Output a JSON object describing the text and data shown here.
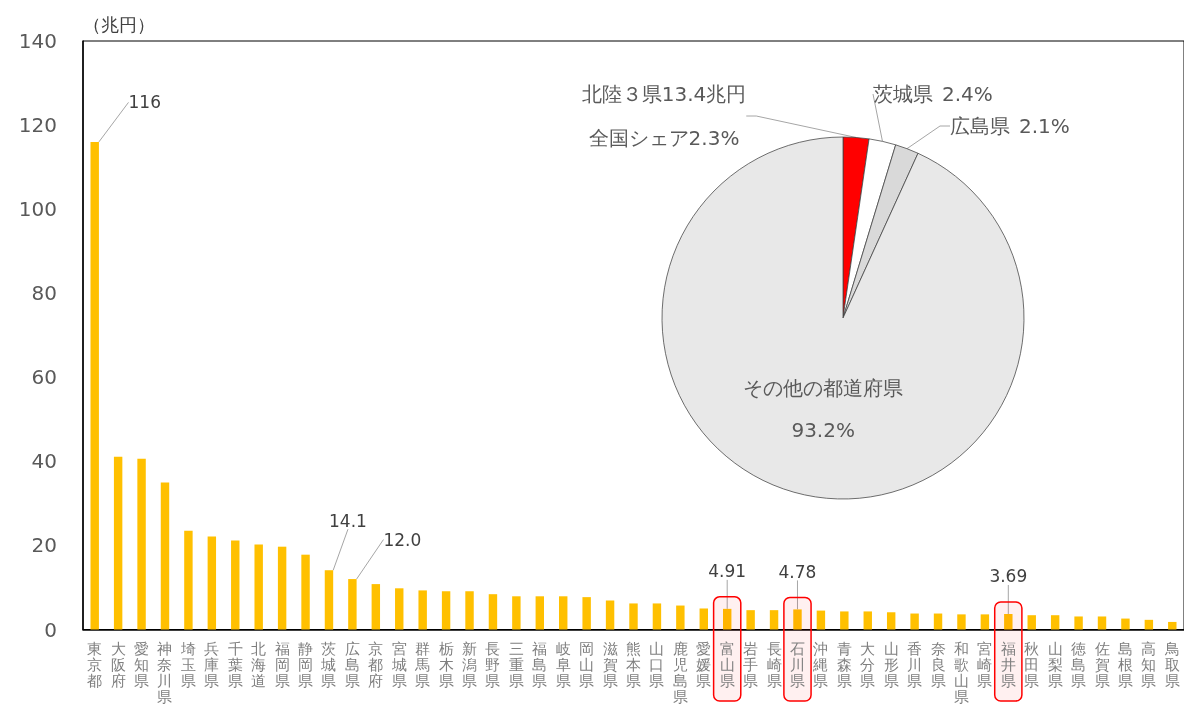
{
  "chart_data": [
    {
      "type": "bar",
      "ylabel": "（兆円）",
      "categories": [
        "東京都",
        "大阪府",
        "愛知県",
        "神奈川県",
        "埼玉県",
        "兵庫県",
        "千葉県",
        "北海道",
        "福岡県",
        "静岡県",
        "茨城県",
        "広島県",
        "京都府",
        "宮城県",
        "群馬県",
        "栃木県",
        "新潟県",
        "長野県",
        "三重県",
        "福島県",
        "岐阜県",
        "岡山県",
        "滋賀県",
        "熊本県",
        "山口県",
        "鹿児島県",
        "愛媛県",
        "富山県",
        "岩手県",
        "長崎県",
        "石川県",
        "沖縄県",
        "青森県",
        "大分県",
        "山形県",
        "香川県",
        "奈良県",
        "和歌山県",
        "宮崎県",
        "福井県",
        "秋田県",
        "山梨県",
        "徳島県",
        "佐賀県",
        "島根県",
        "高知県",
        "鳥取県"
      ],
      "values": [
        116,
        41.1,
        40.6,
        35.0,
        23.5,
        22.1,
        21.2,
        20.2,
        19.7,
        17.8,
        14.1,
        12.0,
        10.8,
        9.8,
        9.3,
        9.1,
        9.1,
        8.4,
        7.9,
        7.9,
        7.9,
        7.7,
        6.9,
        6.2,
        6.2,
        5.7,
        5.0,
        4.91,
        4.6,
        4.6,
        4.78,
        4.5,
        4.3,
        4.3,
        4.1,
        3.8,
        3.8,
        3.6,
        3.6,
        3.69,
        3.4,
        3.4,
        3.1,
        3.1,
        2.6,
        2.3,
        1.8
      ],
      "value_labels": [
        "116",
        null,
        null,
        null,
        null,
        null,
        null,
        null,
        null,
        null,
        "14.1",
        "12.0",
        null,
        null,
        null,
        null,
        null,
        null,
        null,
        null,
        null,
        null,
        null,
        null,
        null,
        null,
        null,
        "4.91",
        null,
        null,
        "4.78",
        null,
        null,
        null,
        null,
        null,
        null,
        null,
        null,
        "3.69",
        null,
        null,
        null,
        null,
        null,
        null,
        null
      ],
      "color": "#ffc000",
      "ylim": [
        0,
        140
      ],
      "yticks": [
        0,
        20,
        40,
        60,
        80,
        100,
        120,
        140
      ],
      "grid": false,
      "bands": [
        {
          "axis": "x",
          "from": "富山県",
          "to": "富山県",
          "color": "#ff0000"
        },
        {
          "axis": "x",
          "from": "石川県",
          "to": "石川県",
          "color": "#ff0000"
        },
        {
          "axis": "x",
          "from": "福井県",
          "to": "福井県",
          "color": "#ff0000"
        }
      ]
    },
    {
      "type": "pie",
      "categories": [
        "北陸３県13.4兆円",
        "茨城県",
        "広島県",
        "その他の都道府県"
      ],
      "values": [
        2.3,
        2.4,
        2.1,
        93.2
      ],
      "colors": [
        "#ff0000",
        "#ffffff",
        "#d9d9d9",
        "#e8e8e8"
      ],
      "value_labels": [
        "全国シェア2.3%",
        "2.4%",
        "2.1%",
        "93.2%"
      ]
    }
  ]
}
